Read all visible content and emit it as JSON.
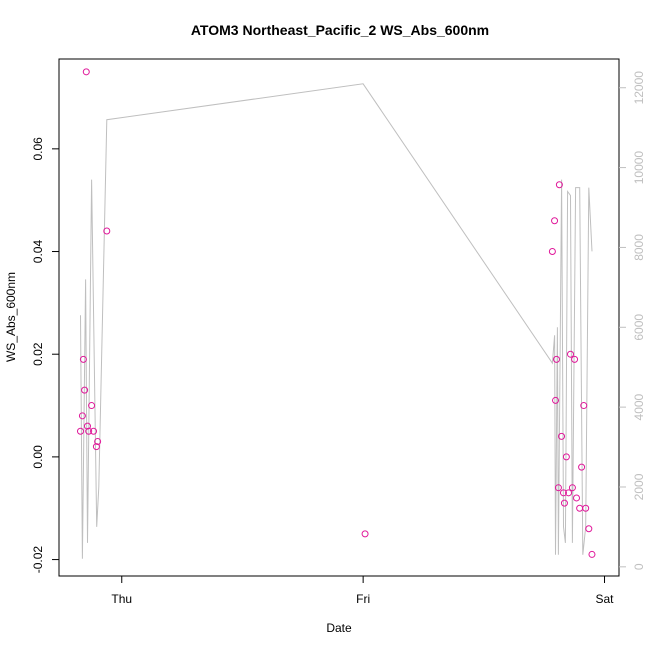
{
  "chart_data": {
    "type": "scatter",
    "title": "ATOM3 Northeast_Pacific_2 WS_Abs_600nm",
    "xlabel": "Date",
    "ylabel": "WS_Abs_600nm",
    "x_ticks": [
      {
        "x": 0.0,
        "label": "Thu"
      },
      {
        "x": 1.0,
        "label": "Fri"
      },
      {
        "x": 2.0,
        "label": "Sat"
      }
    ],
    "xlim": [
      -0.26,
      2.06
    ],
    "ylim": [
      -0.0232,
      0.0775
    ],
    "y_ticks": [
      -0.02,
      0.0,
      0.02,
      0.04,
      0.06
    ],
    "y_tick_labels": [
      "-0.02",
      "0.00",
      "0.02",
      "0.04",
      "0.06"
    ],
    "y2lim": [
      -230,
      12720
    ],
    "y2_ticks": [
      0,
      2000,
      4000,
      6000,
      8000,
      10000,
      12000
    ],
    "y2_tick_labels": [
      "0",
      "2000",
      "4000",
      "6000",
      "8000",
      "10000",
      "12000"
    ],
    "points_color": "#e0189a",
    "line_color": "#bfbfbf",
    "series": [
      {
        "kind": "points",
        "values": [
          [
            -0.171,
            0.005
          ],
          [
            -0.163,
            0.008
          ],
          [
            -0.159,
            0.019
          ],
          [
            -0.154,
            0.013
          ],
          [
            -0.147,
            0.075
          ],
          [
            -0.142,
            0.006
          ],
          [
            -0.137,
            0.005
          ],
          [
            -0.125,
            0.01
          ],
          [
            -0.117,
            0.005
          ],
          [
            -0.105,
            0.002
          ],
          [
            -0.1,
            0.003
          ],
          [
            -0.062,
            0.044
          ],
          [
            1.008,
            -0.015
          ],
          [
            1.784,
            0.04
          ],
          [
            1.793,
            0.046
          ],
          [
            1.797,
            0.011
          ],
          [
            1.801,
            0.019
          ],
          [
            1.809,
            -0.006
          ],
          [
            1.813,
            0.053
          ],
          [
            1.822,
            0.004
          ],
          [
            1.83,
            -0.007
          ],
          [
            1.834,
            -0.009
          ],
          [
            1.842,
            0.0
          ],
          [
            1.851,
            -0.007
          ],
          [
            1.859,
            0.02
          ],
          [
            1.867,
            -0.006
          ],
          [
            1.876,
            0.019
          ],
          [
            1.884,
            -0.008
          ],
          [
            1.897,
            -0.01
          ],
          [
            1.905,
            -0.002
          ],
          [
            1.914,
            0.01
          ],
          [
            1.922,
            -0.01
          ],
          [
            1.935,
            -0.014
          ],
          [
            1.948,
            -0.019
          ]
        ]
      },
      {
        "kind": "line",
        "axis": "right",
        "values": [
          [
            -0.171,
            6300
          ],
          [
            -0.163,
            200
          ],
          [
            -0.15,
            7200
          ],
          [
            -0.142,
            600
          ],
          [
            -0.125,
            9700
          ],
          [
            -0.104,
            1000
          ],
          [
            -0.095,
            2000
          ],
          [
            -0.062,
            11200
          ],
          [
            1.0,
            12100
          ],
          [
            1.784,
            5100
          ],
          [
            1.793,
            5800
          ],
          [
            1.797,
            300
          ],
          [
            1.805,
            6000
          ],
          [
            1.809,
            300
          ],
          [
            1.822,
            9700
          ],
          [
            1.83,
            1000
          ],
          [
            1.838,
            600
          ],
          [
            1.847,
            9400
          ],
          [
            1.859,
            9300
          ],
          [
            1.867,
            600
          ],
          [
            1.88,
            9500
          ],
          [
            1.897,
            9500
          ],
          [
            1.91,
            300
          ],
          [
            1.922,
            1000
          ],
          [
            1.935,
            9500
          ],
          [
            1.948,
            7900
          ]
        ]
      }
    ]
  }
}
